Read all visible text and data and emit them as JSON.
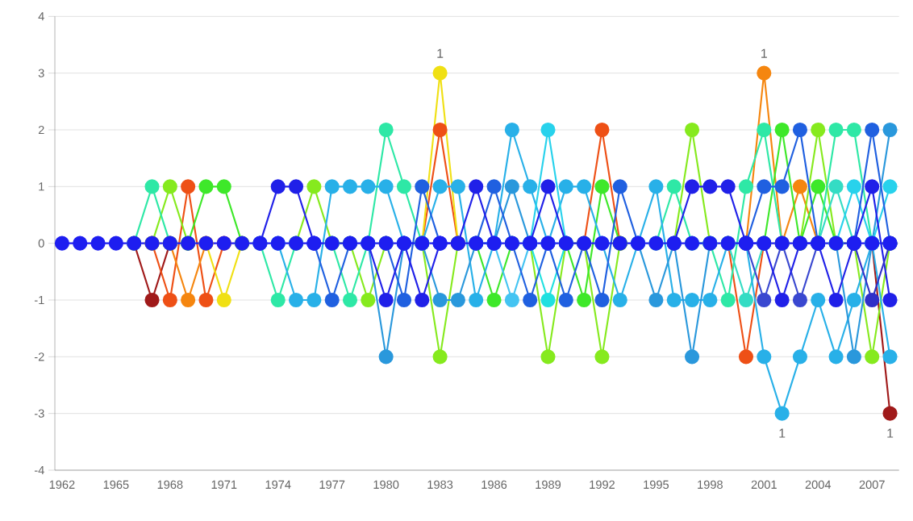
{
  "chart_data": {
    "type": "line",
    "x": [
      1962,
      1963,
      1964,
      1965,
      1966,
      1967,
      1968,
      1969,
      1970,
      1971,
      1972,
      1973,
      1974,
      1975,
      1976,
      1977,
      1978,
      1979,
      1980,
      1981,
      1982,
      1983,
      1984,
      1985,
      1986,
      1987,
      1988,
      1989,
      1990,
      1991,
      1992,
      1993,
      1994,
      1995,
      1996,
      1997,
      1998,
      1999,
      2000,
      2001,
      2002,
      2003,
      2004,
      2005,
      2006,
      2007,
      2008
    ],
    "xlim": [
      1961.6,
      2008.5
    ],
    "xticks": [
      1962,
      1965,
      1968,
      1971,
      1974,
      1977,
      1980,
      1983,
      1986,
      1989,
      1992,
      1995,
      1998,
      2001,
      2004,
      2007
    ],
    "ylim": [
      -4,
      4
    ],
    "yticks": [
      -4,
      -3,
      -2,
      -1,
      0,
      1,
      2,
      3,
      4
    ],
    "grid": "y",
    "marker": "circle",
    "line_style": "solid",
    "annotations": [
      {
        "text": "1",
        "x": 1983,
        "y": 3
      },
      {
        "text": "1",
        "x": 2001,
        "y": 3
      },
      {
        "text": "1",
        "x": 2002,
        "y": -3
      },
      {
        "text": "1",
        "x": 2008,
        "y": -3
      }
    ],
    "series": [
      {
        "color": "#a01a1a",
        "values": [
          null,
          null,
          null,
          null,
          0,
          -1,
          0,
          null,
          null,
          null,
          null,
          null,
          null,
          null,
          null,
          null,
          null,
          null,
          null,
          null,
          null,
          null,
          null,
          null,
          null,
          null,
          null,
          null,
          null,
          null,
          null,
          null,
          null,
          null,
          null,
          null,
          null,
          null,
          null,
          null,
          null,
          null,
          null,
          null,
          null,
          0,
          -3
        ]
      },
      {
        "color": "#ee5016",
        "values": [
          null,
          null,
          null,
          null,
          null,
          0,
          -1,
          1,
          -1,
          0,
          null,
          null,
          null,
          null,
          null,
          null,
          null,
          null,
          null,
          null,
          0,
          2,
          0,
          null,
          null,
          null,
          null,
          null,
          null,
          0,
          2,
          0,
          null,
          null,
          null,
          null,
          null,
          0,
          -2,
          0,
          null,
          null,
          null,
          null,
          null,
          null,
          null
        ]
      },
      {
        "color": "#f5860f",
        "values": [
          null,
          null,
          null,
          null,
          null,
          null,
          0,
          -1,
          0,
          null,
          null,
          null,
          null,
          null,
          null,
          null,
          null,
          null,
          null,
          null,
          null,
          null,
          null,
          null,
          null,
          null,
          null,
          null,
          null,
          null,
          null,
          null,
          null,
          null,
          null,
          null,
          null,
          null,
          0,
          3,
          0,
          1,
          0,
          null,
          null,
          null,
          null
        ]
      },
      {
        "color": "#f0e014",
        "values": [
          null,
          null,
          null,
          null,
          null,
          null,
          null,
          null,
          0,
          -1,
          0,
          null,
          null,
          null,
          null,
          null,
          null,
          null,
          null,
          null,
          0,
          3,
          0,
          null,
          null,
          null,
          null,
          null,
          null,
          null,
          null,
          null,
          null,
          null,
          null,
          null,
          null,
          null,
          null,
          null,
          null,
          null,
          null,
          null,
          null,
          null,
          null
        ]
      },
      {
        "color": "#86ea1e",
        "values": [
          null,
          null,
          null,
          null,
          null,
          0,
          1,
          0,
          null,
          null,
          null,
          null,
          null,
          0,
          1,
          0,
          0,
          -1,
          0,
          null,
          0,
          -2,
          0,
          null,
          null,
          null,
          0,
          -2,
          0,
          0,
          -2,
          0,
          null,
          null,
          0,
          2,
          0,
          null,
          null,
          null,
          null,
          0,
          2,
          0,
          0,
          -2,
          0
        ]
      },
      {
        "color": "#3ee82a",
        "values": [
          null,
          null,
          null,
          null,
          null,
          null,
          null,
          0,
          1,
          1,
          0,
          null,
          null,
          null,
          null,
          null,
          null,
          null,
          null,
          null,
          null,
          null,
          null,
          0,
          -1,
          0,
          null,
          null,
          0,
          -1,
          1,
          0,
          null,
          null,
          null,
          null,
          null,
          null,
          null,
          0,
          2,
          0,
          1,
          0,
          null,
          null,
          null
        ]
      },
      {
        "color": "#2ee8a6",
        "values": [
          null,
          null,
          null,
          null,
          0,
          1,
          0,
          null,
          null,
          null,
          null,
          0,
          -1,
          0,
          null,
          0,
          -1,
          0,
          2,
          1,
          0,
          null,
          null,
          null,
          null,
          null,
          null,
          null,
          null,
          null,
          null,
          null,
          null,
          0,
          1,
          0,
          0,
          -1,
          1,
          2,
          0,
          null,
          0,
          2,
          2,
          0,
          null
        ]
      },
      {
        "color": "#34dcc4",
        "values": [
          null,
          null,
          null,
          null,
          null,
          null,
          null,
          null,
          null,
          null,
          null,
          null,
          null,
          null,
          null,
          null,
          null,
          null,
          null,
          null,
          null,
          null,
          null,
          null,
          null,
          null,
          null,
          null,
          null,
          null,
          null,
          null,
          null,
          null,
          null,
          null,
          null,
          0,
          -1,
          0,
          null,
          null,
          0,
          1,
          0,
          null,
          null
        ]
      },
      {
        "color": "#28b0e8",
        "values": [
          null,
          null,
          null,
          null,
          null,
          null,
          null,
          null,
          null,
          null,
          null,
          null,
          0,
          -1,
          -1,
          1,
          1,
          1,
          1,
          0,
          0,
          1,
          1,
          -1,
          0,
          2,
          1,
          0,
          1,
          1,
          0,
          -1,
          0,
          1,
          -1,
          -1,
          -1,
          0,
          0,
          -2,
          -3,
          -2,
          -1,
          -2,
          -1,
          0,
          -2
        ]
      },
      {
        "color": "#2a98dc",
        "values": [
          null,
          null,
          null,
          null,
          null,
          null,
          null,
          null,
          null,
          null,
          null,
          null,
          null,
          null,
          null,
          null,
          null,
          0,
          -2,
          0,
          0,
          -1,
          -1,
          0,
          0,
          1,
          0,
          null,
          null,
          null,
          null,
          null,
          0,
          -1,
          0,
          -2,
          0,
          null,
          null,
          null,
          null,
          null,
          null,
          0,
          -2,
          0,
          2
        ]
      },
      {
        "color": "#44c4f2",
        "values": [
          null,
          null,
          null,
          null,
          null,
          null,
          null,
          null,
          null,
          null,
          null,
          null,
          null,
          null,
          null,
          null,
          null,
          null,
          null,
          null,
          null,
          null,
          null,
          null,
          0,
          -1,
          0,
          null,
          null,
          null,
          null,
          null,
          null,
          null,
          null,
          null,
          null,
          null,
          null,
          null,
          null,
          null,
          null,
          null,
          null,
          null,
          null
        ]
      },
      {
        "color": "#28d2ec",
        "values": [
          null,
          null,
          null,
          null,
          null,
          null,
          null,
          null,
          null,
          null,
          null,
          null,
          null,
          null,
          null,
          null,
          null,
          null,
          null,
          null,
          null,
          null,
          null,
          null,
          null,
          null,
          0,
          2,
          0,
          null,
          null,
          null,
          null,
          null,
          null,
          null,
          null,
          null,
          null,
          null,
          null,
          null,
          null,
          0,
          1,
          0,
          1
        ]
      },
      {
        "color": "#20e0e0",
        "values": [
          null,
          null,
          null,
          null,
          null,
          null,
          null,
          null,
          null,
          null,
          null,
          null,
          null,
          null,
          null,
          null,
          null,
          null,
          null,
          null,
          null,
          null,
          null,
          null,
          null,
          null,
          0,
          -1,
          0,
          null,
          null,
          null,
          null,
          null,
          null,
          null,
          null,
          null,
          null,
          null,
          null,
          null,
          null,
          null,
          null,
          null,
          null
        ]
      },
      {
        "color": "#2060e0",
        "values": [
          null,
          null,
          null,
          null,
          null,
          null,
          null,
          null,
          null,
          null,
          null,
          null,
          null,
          null,
          0,
          -1,
          0,
          null,
          0,
          -1,
          1,
          0,
          null,
          0,
          1,
          0,
          -1,
          0,
          -1,
          0,
          -1,
          1,
          0,
          null,
          null,
          null,
          null,
          null,
          0,
          1,
          1,
          2,
          0,
          null,
          0,
          2,
          0
        ]
      },
      {
        "color": "#3a48d0",
        "values": [
          null,
          null,
          null,
          null,
          null,
          null,
          null,
          null,
          null,
          null,
          null,
          null,
          null,
          null,
          null,
          null,
          null,
          null,
          null,
          null,
          null,
          null,
          null,
          null,
          null,
          null,
          null,
          null,
          null,
          null,
          null,
          null,
          null,
          null,
          null,
          null,
          null,
          null,
          0,
          -1,
          0,
          -1,
          0,
          null,
          null,
          null,
          null
        ]
      },
      {
        "color": "#2020e8",
        "values": [
          null,
          null,
          null,
          null,
          null,
          null,
          null,
          null,
          null,
          null,
          null,
          0,
          1,
          1,
          0,
          null,
          null,
          0,
          -1,
          0,
          -1,
          0,
          0,
          1,
          0,
          null,
          0,
          1,
          0,
          null,
          null,
          null,
          null,
          null,
          0,
          1,
          1,
          1,
          0,
          0,
          -1,
          0,
          0,
          -1,
          0,
          1,
          -1
        ]
      },
      {
        "color": "#3030c8",
        "values": [
          null,
          null,
          null,
          null,
          null,
          null,
          null,
          null,
          null,
          null,
          null,
          null,
          null,
          null,
          null,
          null,
          null,
          null,
          null,
          null,
          null,
          null,
          null,
          null,
          null,
          null,
          null,
          null,
          null,
          null,
          null,
          null,
          null,
          null,
          null,
          null,
          null,
          null,
          null,
          null,
          null,
          null,
          null,
          null,
          0,
          -1,
          0
        ]
      },
      {
        "color": "#1e1ef0",
        "values": [
          0,
          0,
          0,
          0,
          0,
          0,
          0,
          0,
          0,
          0,
          0,
          0,
          0,
          0,
          0,
          0,
          0,
          0,
          0,
          0,
          0,
          0,
          0,
          0,
          0,
          0,
          0,
          0,
          0,
          0,
          0,
          0,
          0,
          0,
          0,
          0,
          0,
          0,
          0,
          0,
          0,
          0,
          0,
          0,
          0,
          0,
          0
        ]
      }
    ]
  }
}
